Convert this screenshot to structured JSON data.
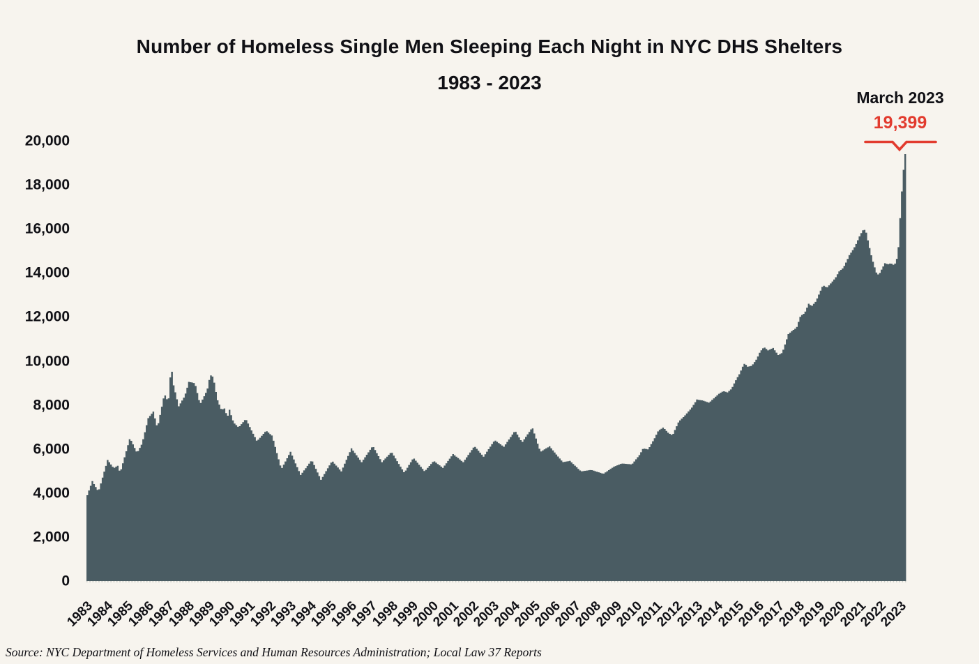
{
  "chart_data": {
    "type": "area",
    "title": "Number of Homeless Single Men Sleeping Each Night in NYC DHS Shelters",
    "subtitle": "1983 - 2023",
    "source_note": "Source:  NYC Department of Homeless Services and Human Resources Administration; Local Law 37 Reports",
    "annotation": {
      "label": "March 2023",
      "value": "19,399",
      "value_num": 19399,
      "x": 2023.21
    },
    "legend": "none",
    "grid": "off",
    "colors": {
      "background": "#f7f4ee",
      "area_fill": "#4a5c63",
      "accent_red": "#e23b2e",
      "text": "#101015"
    },
    "y_axis": {
      "min": 0,
      "max": 20000,
      "tick_interval": 2000,
      "ticks": [
        20000,
        18000,
        16000,
        14000,
        12000,
        10000,
        8000,
        6000,
        4000,
        2000,
        0
      ],
      "tick_labels": [
        "20,000",
        "18,000",
        "16,000",
        "14,000",
        "12,000",
        "10,000",
        "8,000",
        "6,000",
        "4,000",
        "2,000",
        "0"
      ]
    },
    "x_axis": {
      "tick_years": [
        "1983",
        "1984",
        "1985",
        "1986",
        "1987",
        "1988",
        "1989",
        "1990",
        "1991",
        "1992",
        "1993",
        "1994",
        "1995",
        "1996",
        "1997",
        "1998",
        "1999",
        "2000",
        "2001",
        "2002",
        "2003",
        "2004",
        "2005",
        "2006",
        "2007",
        "2008",
        "2009",
        "2010",
        "2011",
        "2012",
        "2013",
        "2014",
        "2015",
        "2016",
        "2017",
        "2018",
        "2019",
        "2020",
        "2021",
        "2022",
        "2023"
      ]
    },
    "series": [
      {
        "name": "Homeless single men sleeping each night in NYC DHS shelters",
        "points": [
          [
            1983.0,
            3900
          ],
          [
            1983.25,
            4540
          ],
          [
            1983.55,
            4060
          ],
          [
            1983.75,
            4700
          ],
          [
            1984.0,
            5500
          ],
          [
            1984.3,
            5130
          ],
          [
            1984.5,
            5240
          ],
          [
            1984.62,
            4920
          ],
          [
            1985.1,
            6500
          ],
          [
            1985.45,
            5820
          ],
          [
            1985.7,
            6250
          ],
          [
            1986.0,
            7400
          ],
          [
            1986.25,
            7700
          ],
          [
            1986.45,
            6950
          ],
          [
            1986.8,
            8520
          ],
          [
            1986.9,
            8250
          ],
          [
            1987.0,
            8300
          ],
          [
            1987.06,
            8990
          ],
          [
            1987.13,
            9780
          ],
          [
            1987.25,
            8890
          ],
          [
            1987.5,
            7940
          ],
          [
            1987.8,
            8410
          ],
          [
            1988.0,
            9050
          ],
          [
            1988.3,
            8990
          ],
          [
            1988.55,
            8030
          ],
          [
            1988.9,
            8670
          ],
          [
            1989.05,
            9365
          ],
          [
            1989.2,
            9270
          ],
          [
            1989.4,
            8250
          ],
          [
            1989.6,
            7780
          ],
          [
            1989.75,
            7840
          ],
          [
            1989.9,
            7460
          ],
          [
            1990.0,
            7780
          ],
          [
            1990.2,
            7200
          ],
          [
            1990.45,
            6980
          ],
          [
            1990.8,
            7370
          ],
          [
            1991.35,
            6350
          ],
          [
            1991.8,
            6830
          ],
          [
            1992.1,
            6600
          ],
          [
            1992.55,
            5080
          ],
          [
            1993.0,
            5870
          ],
          [
            1993.5,
            4820
          ],
          [
            1994.05,
            5500
          ],
          [
            1994.5,
            4600
          ],
          [
            1995.05,
            5460
          ],
          [
            1995.5,
            4980
          ],
          [
            1996.0,
            6030
          ],
          [
            1996.5,
            5400
          ],
          [
            1997.05,
            6140
          ],
          [
            1997.5,
            5400
          ],
          [
            1997.97,
            5870
          ],
          [
            1998.6,
            4920
          ],
          [
            1999.05,
            5600
          ],
          [
            1999.6,
            4980
          ],
          [
            2000.05,
            5460
          ],
          [
            2000.5,
            5140
          ],
          [
            2001.0,
            5770
          ],
          [
            2001.5,
            5400
          ],
          [
            2002.05,
            6130
          ],
          [
            2002.5,
            5650
          ],
          [
            2003.05,
            6400
          ],
          [
            2003.5,
            6100
          ],
          [
            2004.05,
            6830
          ],
          [
            2004.4,
            6300
          ],
          [
            2004.9,
            6980
          ],
          [
            2005.3,
            5870
          ],
          [
            2005.75,
            6120
          ],
          [
            2006.4,
            5400
          ],
          [
            2006.75,
            5460
          ],
          [
            2007.3,
            4980
          ],
          [
            2007.8,
            5050
          ],
          [
            2008.4,
            4870
          ],
          [
            2008.9,
            5190
          ],
          [
            2009.3,
            5340
          ],
          [
            2009.8,
            5300
          ],
          [
            2010.2,
            5760
          ],
          [
            2010.35,
            6030
          ],
          [
            2010.6,
            5980
          ],
          [
            2010.9,
            6460
          ],
          [
            2011.1,
            6830
          ],
          [
            2011.35,
            6980
          ],
          [
            2011.6,
            6720
          ],
          [
            2011.8,
            6620
          ],
          [
            2012.1,
            7240
          ],
          [
            2012.4,
            7510
          ],
          [
            2012.75,
            7880
          ],
          [
            2013.0,
            8250
          ],
          [
            2013.3,
            8200
          ],
          [
            2013.6,
            8100
          ],
          [
            2013.9,
            8360
          ],
          [
            2014.1,
            8520
          ],
          [
            2014.3,
            8630
          ],
          [
            2014.5,
            8570
          ],
          [
            2014.7,
            8730
          ],
          [
            2014.9,
            9100
          ],
          [
            2015.1,
            9420
          ],
          [
            2015.25,
            9740
          ],
          [
            2015.35,
            9890
          ],
          [
            2015.5,
            9740
          ],
          [
            2015.7,
            9780
          ],
          [
            2015.95,
            10100
          ],
          [
            2016.1,
            10410
          ],
          [
            2016.3,
            10630
          ],
          [
            2016.5,
            10480
          ],
          [
            2016.75,
            10590
          ],
          [
            2017.0,
            10270
          ],
          [
            2017.2,
            10370
          ],
          [
            2017.5,
            11220
          ],
          [
            2017.7,
            11380
          ],
          [
            2017.9,
            11500
          ],
          [
            2018.1,
            12050
          ],
          [
            2018.3,
            12170
          ],
          [
            2018.5,
            12600
          ],
          [
            2018.65,
            12490
          ],
          [
            2018.85,
            12700
          ],
          [
            2019.05,
            13120
          ],
          [
            2019.2,
            13440
          ],
          [
            2019.4,
            13330
          ],
          [
            2019.6,
            13540
          ],
          [
            2019.8,
            13750
          ],
          [
            2020.0,
            14070
          ],
          [
            2020.2,
            14230
          ],
          [
            2020.35,
            14500
          ],
          [
            2020.5,
            14810
          ],
          [
            2020.7,
            15080
          ],
          [
            2020.85,
            15340
          ],
          [
            2021.0,
            15660
          ],
          [
            2021.15,
            15930
          ],
          [
            2021.3,
            15970
          ],
          [
            2021.45,
            15340
          ],
          [
            2021.55,
            14920
          ],
          [
            2021.7,
            14390
          ],
          [
            2021.85,
            13970
          ],
          [
            2021.95,
            13910
          ],
          [
            2022.1,
            14180
          ],
          [
            2022.25,
            14440
          ],
          [
            2022.4,
            14390
          ],
          [
            2022.55,
            14440
          ],
          [
            2022.7,
            14350
          ],
          [
            2022.8,
            14500
          ],
          [
            2022.9,
            14920
          ],
          [
            2022.97,
            15970
          ],
          [
            2023.05,
            17350
          ],
          [
            2023.1,
            17880
          ],
          [
            2023.15,
            18410
          ],
          [
            2023.21,
            19399
          ]
        ]
      }
    ]
  }
}
